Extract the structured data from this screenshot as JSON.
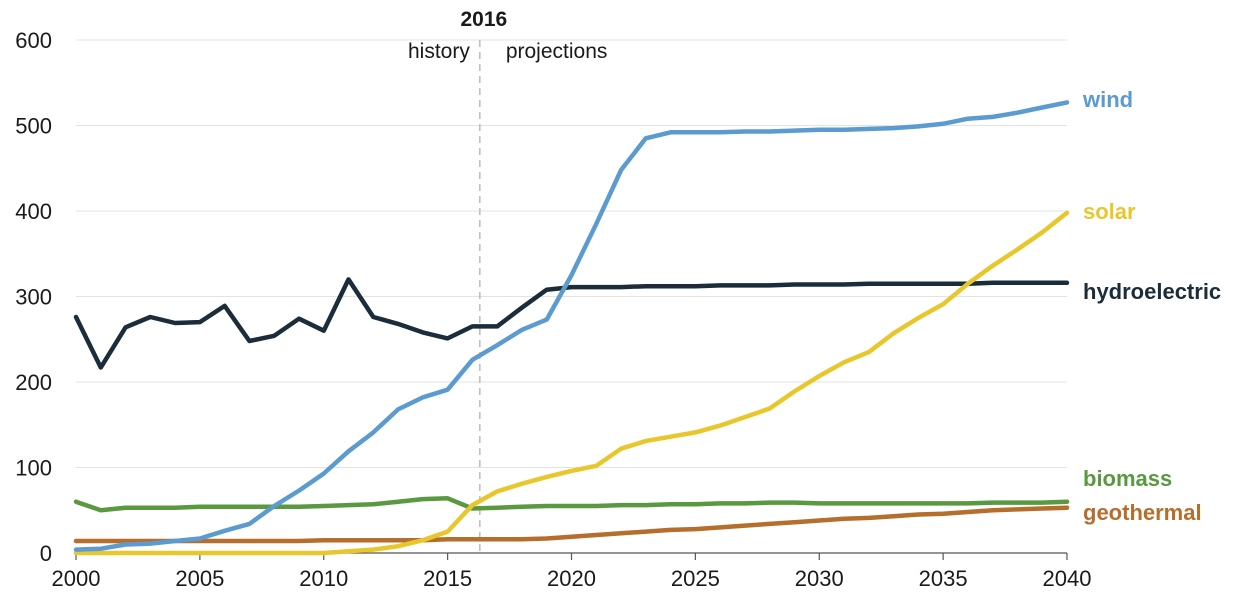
{
  "chart_data": {
    "type": "line",
    "xlim": [
      2000,
      2040
    ],
    "ylim": [
      0,
      600
    ],
    "x_ticks": [
      2000,
      2005,
      2010,
      2015,
      2020,
      2025,
      2030,
      2035,
      2040
    ],
    "y_ticks": [
      0,
      100,
      200,
      300,
      400,
      500,
      600
    ],
    "grid": "horizontal",
    "divider": {
      "x": 2016.3,
      "label": "2016",
      "left_label": "history",
      "right_label": "projections"
    },
    "x": [
      2000,
      2001,
      2002,
      2003,
      2004,
      2005,
      2006,
      2007,
      2008,
      2009,
      2010,
      2011,
      2012,
      2013,
      2014,
      2015,
      2016,
      2017,
      2018,
      2019,
      2020,
      2021,
      2022,
      2023,
      2024,
      2025,
      2026,
      2027,
      2028,
      2029,
      2030,
      2031,
      2032,
      2033,
      2034,
      2035,
      2036,
      2037,
      2038,
      2039,
      2040
    ],
    "series": [
      {
        "name": "wind",
        "color": "#5b9bd0",
        "values": [
          4,
          5,
          10,
          11,
          14,
          17,
          26,
          34,
          55,
          73,
          93,
          119,
          141,
          168,
          182,
          191,
          226,
          243,
          261,
          273,
          325,
          385,
          448,
          485,
          492,
          492,
          492,
          493,
          493,
          494,
          495,
          495,
          496,
          497,
          499,
          502,
          508,
          510,
          515,
          521,
          527
        ]
      },
      {
        "name": "solar",
        "color": "#e8c72c",
        "values": [
          0,
          0,
          0,
          0,
          0,
          0,
          0,
          0,
          0,
          0,
          0,
          2,
          4,
          8,
          15,
          25,
          56,
          72,
          81,
          89,
          96,
          102,
          122,
          131,
          136,
          141,
          149,
          159,
          169,
          189,
          207,
          223,
          235,
          257,
          275,
          291,
          315,
          336,
          355,
          375,
          398
        ]
      },
      {
        "name": "hydroelectric",
        "color": "#1b2d3a",
        "values": [
          276,
          217,
          264,
          276,
          269,
          270,
          289,
          248,
          254,
          274,
          260,
          320,
          276,
          268,
          258,
          251,
          265,
          265,
          287,
          308,
          311,
          311,
          311,
          312,
          312,
          312,
          313,
          313,
          313,
          314,
          314,
          314,
          315,
          315,
          315,
          315,
          315,
          316,
          316,
          316,
          316
        ]
      },
      {
        "name": "biomass",
        "color": "#5a9940",
        "values": [
          60,
          50,
          53,
          53,
          53,
          54,
          54,
          54,
          54,
          54,
          55,
          56,
          57,
          60,
          63,
          64,
          52,
          53,
          54,
          55,
          55,
          55,
          56,
          56,
          57,
          57,
          58,
          58,
          59,
          59,
          58,
          58,
          58,
          58,
          58,
          58,
          58,
          59,
          59,
          59,
          60
        ]
      },
      {
        "name": "geothermal",
        "color": "#b56e2c",
        "values": [
          14,
          14,
          14,
          14,
          14,
          14,
          14,
          14,
          14,
          14,
          15,
          15,
          15,
          15,
          15,
          16,
          16,
          16,
          16,
          17,
          19,
          21,
          23,
          25,
          27,
          28,
          30,
          32,
          34,
          36,
          38,
          40,
          41,
          43,
          45,
          46,
          48,
          50,
          51,
          52,
          53
        ]
      }
    ]
  }
}
